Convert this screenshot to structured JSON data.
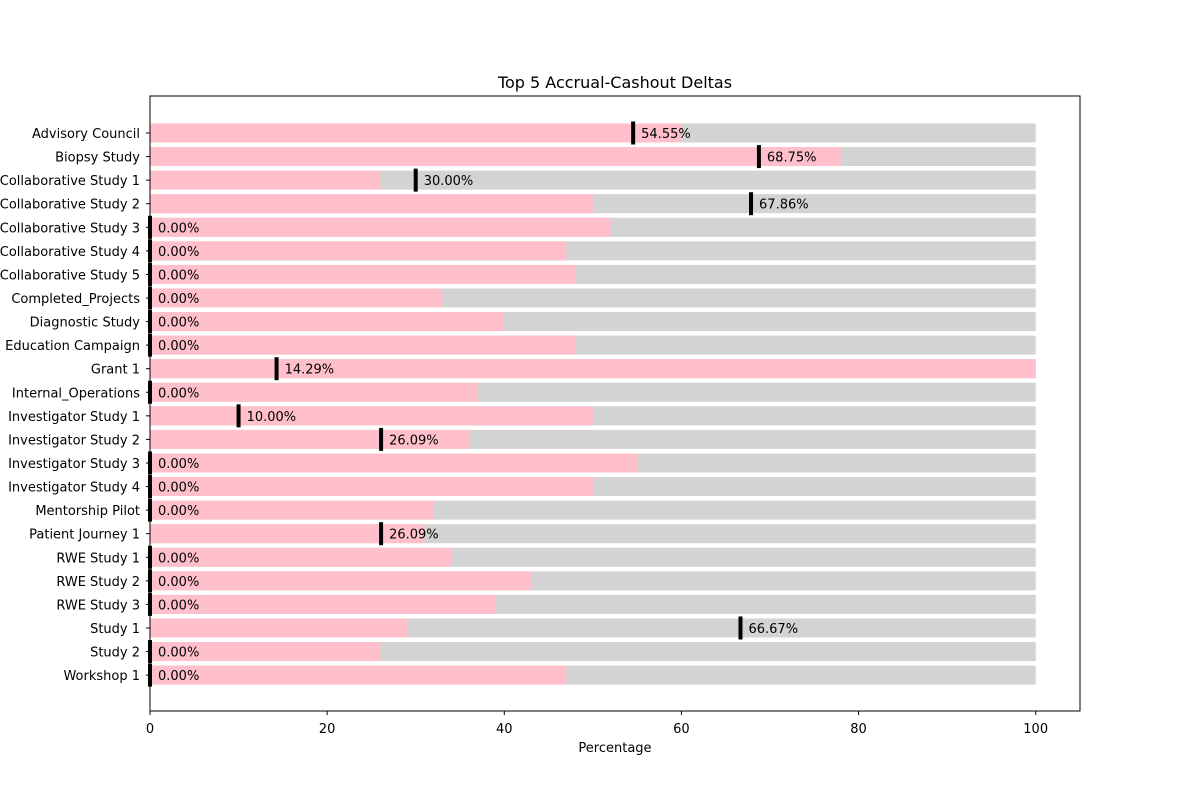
{
  "chart_data": {
    "type": "bar",
    "orientation": "horizontal",
    "title": "Top 5 Accrual-Cashout Deltas",
    "xlabel": "Percentage",
    "ylabel": "",
    "xlim": [
      0,
      105
    ],
    "xticks": [
      0,
      20,
      40,
      60,
      80,
      100
    ],
    "grid": false,
    "categories": [
      "Advisory Council",
      "Biopsy Study",
      "Collaborative Study 1",
      "Collaborative Study 2",
      "Collaborative Study 3",
      "Collaborative Study 4",
      "Collaborative Study 5",
      "Completed_Projects",
      "Diagnostic Study",
      "Education Campaign",
      "Grant 1",
      "Internal_Operations",
      "Investigator Study 1",
      "Investigator Study 2",
      "Investigator Study 3",
      "Investigator Study 4",
      "Mentorship Pilot",
      "Patient Journey 1",
      "RWE Study 1",
      "RWE Study 2",
      "RWE Study 3",
      "Study 1",
      "Study 2",
      "Workshop 1"
    ],
    "series": [
      {
        "role": "background",
        "color": "#d3d3d3",
        "values": [
          100,
          100,
          100,
          100,
          100,
          100,
          100,
          100,
          100,
          100,
          100,
          100,
          100,
          100,
          100,
          100,
          100,
          100,
          100,
          100,
          100,
          100,
          100,
          100
        ]
      },
      {
        "role": "accrual",
        "color": "#ffc0cb",
        "values": [
          60,
          78,
          26,
          50,
          52,
          47,
          48,
          33,
          40,
          48,
          100,
          37,
          50,
          36,
          55,
          50,
          32,
          31,
          34,
          43,
          39,
          29,
          26,
          47
        ]
      },
      {
        "role": "marker",
        "color": "#000000",
        "values": [
          54.55,
          68.75,
          30.0,
          67.86,
          0,
          0,
          0,
          0,
          0,
          0,
          14.29,
          0,
          10.0,
          26.09,
          0,
          0,
          0,
          26.09,
          0,
          0,
          0,
          66.67,
          0,
          0
        ]
      }
    ],
    "data_labels": [
      "54.55%",
      "68.75%",
      "30.00%",
      "67.86%",
      "0.00%",
      "0.00%",
      "0.00%",
      "0.00%",
      "0.00%",
      "0.00%",
      "14.29%",
      "0.00%",
      "10.00%",
      "26.09%",
      "0.00%",
      "0.00%",
      "0.00%",
      "26.09%",
      "0.00%",
      "0.00%",
      "0.00%",
      "66.67%",
      "0.00%",
      "0.00%"
    ]
  }
}
